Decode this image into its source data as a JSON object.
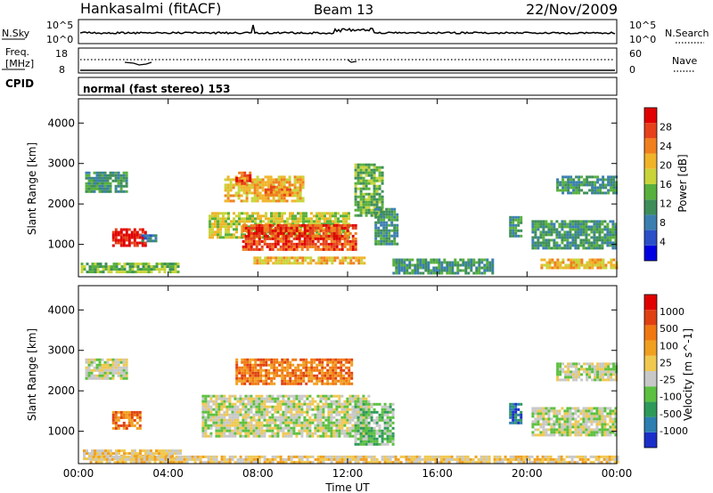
{
  "header": {
    "station": "Hankasalmi (fitACF)",
    "beam": "Beam 13",
    "date": "22/Nov/2009"
  },
  "top_panels": {
    "nsky_label": "N.Sky",
    "nsky_ticks": [
      "10^5",
      "10^0"
    ],
    "nsearch_label": "N.Search",
    "nsearch_ticks": [
      "10^5",
      "10^0"
    ],
    "freq_label_1": "Freq.",
    "freq_label_2": "[MHz]",
    "freq_ticks": [
      "18",
      "8"
    ],
    "nave_label": "Nave",
    "nave_ticks": [
      "60",
      "0"
    ],
    "cpid_label": "CPID",
    "cpid_text": "normal (fast stereo) 153"
  },
  "chart_data": [
    {
      "type": "heatmap",
      "title": "",
      "ylabel": "Slant Range [km]",
      "xlabel": "Time UT",
      "x_ticks": [
        "00:00",
        "04:00",
        "08:00",
        "12:00",
        "16:00",
        "20:00",
        "00:00"
      ],
      "y_ticks": [
        "1000",
        "2000",
        "3000",
        "4000"
      ],
      "ylim": [
        200,
        4600
      ],
      "xlim": [
        0,
        24
      ],
      "colorbar": {
        "label": "Power [dB]",
        "ticks": [
          "4",
          "8",
          "12",
          "16",
          "20",
          "24",
          "28"
        ],
        "colors": [
          "#0000e0",
          "#2a4fc8",
          "#3b7fb0",
          "#3e8e5a",
          "#58b03c",
          "#c8d43a",
          "#f0b429",
          "#f07f1e",
          "#e6411a",
          "#e00000"
        ]
      },
      "regions": [
        {
          "t0": 0.3,
          "t1": 2.1,
          "r0": 2300,
          "r1": 2800,
          "level": 3
        },
        {
          "t0": 1.5,
          "t1": 3.0,
          "r0": 1000,
          "r1": 1400,
          "level": 9
        },
        {
          "t0": 2.8,
          "t1": 3.5,
          "r0": 1100,
          "r1": 1250,
          "level": 2
        },
        {
          "t0": 0.1,
          "t1": 4.5,
          "r0": 300,
          "r1": 550,
          "level": 4
        },
        {
          "t0": 6.5,
          "t1": 10.0,
          "r0": 2100,
          "r1": 2700,
          "level": 6
        },
        {
          "t0": 7.0,
          "t1": 7.6,
          "r0": 2500,
          "r1": 2800,
          "level": 8
        },
        {
          "t0": 8.3,
          "t1": 9.4,
          "r0": 2200,
          "r1": 2450,
          "level": 7
        },
        {
          "t0": 5.8,
          "t1": 12.0,
          "r0": 1200,
          "r1": 1800,
          "level": 5
        },
        {
          "t0": 7.3,
          "t1": 12.4,
          "r0": 900,
          "r1": 1500,
          "level": 8
        },
        {
          "t0": 12.3,
          "t1": 13.5,
          "r0": 1700,
          "r1": 3000,
          "level": 4
        },
        {
          "t0": 13.2,
          "t1": 14.2,
          "r0": 1000,
          "r1": 1900,
          "level": 3
        },
        {
          "t0": 7.8,
          "t1": 12.8,
          "r0": 550,
          "r1": 700,
          "level": 6
        },
        {
          "t0": 14.0,
          "t1": 18.5,
          "r0": 300,
          "r1": 650,
          "level": 3
        },
        {
          "t0": 19.2,
          "t1": 19.7,
          "r0": 1200,
          "r1": 1700,
          "level": 3
        },
        {
          "t0": 20.2,
          "t1": 24.0,
          "r0": 900,
          "r1": 1600,
          "level": 3
        },
        {
          "t0": 20.6,
          "t1": 24.0,
          "r0": 400,
          "r1": 650,
          "level": 6
        },
        {
          "t0": 21.3,
          "t1": 24.0,
          "r0": 2300,
          "r1": 2700,
          "level": 3
        }
      ]
    },
    {
      "type": "heatmap",
      "title": "",
      "ylabel": "Slant Range [km]",
      "xlabel": "Time UT",
      "x_ticks": [
        "00:00",
        "04:00",
        "08:00",
        "12:00",
        "16:00",
        "20:00",
        "00:00"
      ],
      "y_ticks": [
        "1000",
        "2000",
        "3000",
        "4000"
      ],
      "ylim": [
        200,
        4600
      ],
      "xlim": [
        0,
        24
      ],
      "colorbar": {
        "label": "Velocity [m s^-1]",
        "ticks": [
          "1000",
          "500",
          "100",
          "25",
          "-25",
          "-100",
          "-500",
          "-1000"
        ],
        "colors": [
          "#1a2fc8",
          "#2c7fb0",
          "#2e9a5a",
          "#5cc040",
          "#c8c8c8",
          "#f0c850",
          "#f0a020",
          "#f07810",
          "#e04010",
          "#e00000"
        ]
      },
      "regions": [
        {
          "t0": 0.3,
          "t1": 2.1,
          "r0": 2300,
          "r1": 2800,
          "level": 4
        },
        {
          "t0": 1.5,
          "t1": 2.8,
          "r0": 1050,
          "r1": 1500,
          "level": 7
        },
        {
          "t0": 0.2,
          "t1": 4.6,
          "r0": 300,
          "r1": 550,
          "level": 5
        },
        {
          "t0": 7.0,
          "t1": 12.2,
          "r0": 2200,
          "r1": 2800,
          "level": 7
        },
        {
          "t0": 5.5,
          "t1": 13.0,
          "r0": 900,
          "r1": 1900,
          "level": 4
        },
        {
          "t0": 12.3,
          "t1": 14.0,
          "r0": 700,
          "r1": 1700,
          "level": 3
        },
        {
          "t0": 19.2,
          "t1": 19.7,
          "r0": 1200,
          "r1": 1700,
          "level": 1
        },
        {
          "t0": 20.2,
          "t1": 24.0,
          "r0": 900,
          "r1": 1600,
          "level": 4
        },
        {
          "t0": 21.3,
          "t1": 24.0,
          "r0": 2300,
          "r1": 2700,
          "level": 4
        },
        {
          "t0": 0.5,
          "t1": 24.0,
          "r0": 250,
          "r1": 400,
          "level": 5
        }
      ]
    }
  ]
}
